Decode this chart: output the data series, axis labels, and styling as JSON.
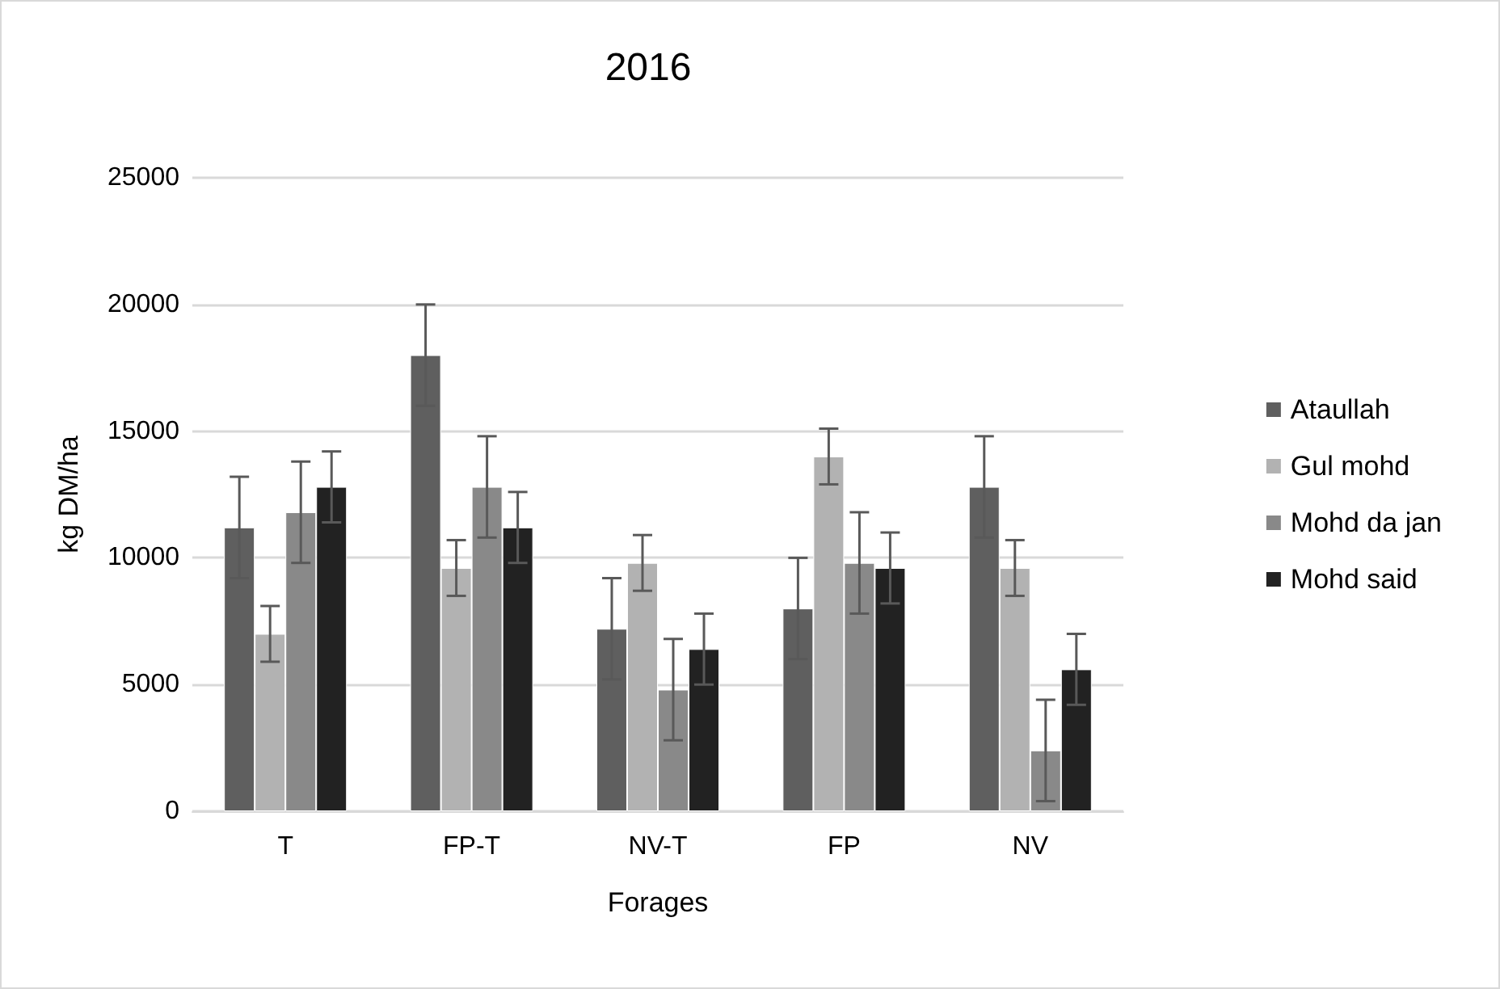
{
  "chart_data": {
    "type": "bar",
    "title": "2016",
    "xlabel": "Forages",
    "ylabel": "kg DM/ha",
    "categories": [
      "T",
      "FP-T",
      "NV-T",
      "FP",
      "NV"
    ],
    "series": [
      {
        "name": "Ataullah",
        "color": "#5f5f5f",
        "values": [
          11200,
          18000,
          7200,
          8000,
          12800
        ],
        "errors": [
          2000,
          2000,
          2000,
          2000,
          2000
        ]
      },
      {
        "name": "Gul mohd",
        "color": "#b2b2b2",
        "values": [
          7000,
          9600,
          9800,
          14000,
          9600
        ],
        "errors": [
          1100,
          1100,
          1100,
          1100,
          1100
        ]
      },
      {
        "name": "Mohd da jan",
        "color": "#898989",
        "values": [
          11800,
          12800,
          4800,
          9800,
          2400
        ],
        "errors": [
          2000,
          2000,
          2000,
          2000,
          2000
        ]
      },
      {
        "name": "Mohd said",
        "color": "#222222",
        "values": [
          12800,
          11200,
          6400,
          9600,
          5600
        ],
        "errors": [
          1400,
          1400,
          1400,
          1400,
          1400
        ]
      }
    ],
    "ylim": [
      0,
      25000
    ],
    "yticks": [
      0,
      5000,
      10000,
      15000,
      20000,
      25000
    ],
    "grid": "y",
    "legend": "right"
  }
}
